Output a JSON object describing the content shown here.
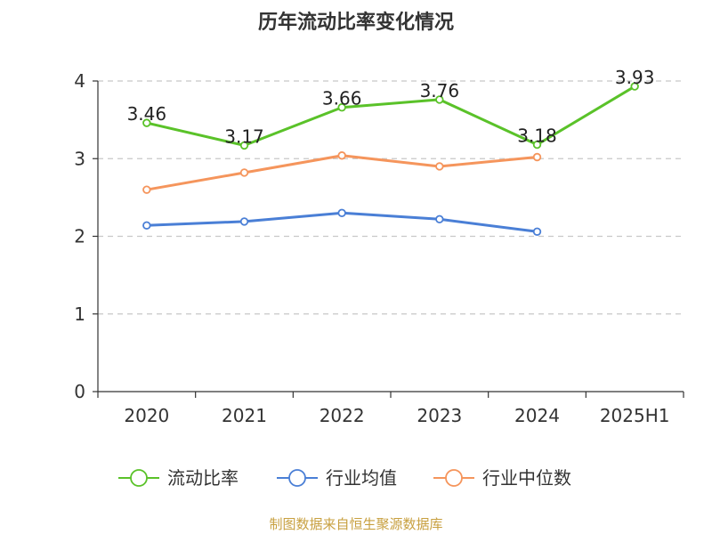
{
  "chart_data": {
    "type": "line",
    "title": "历年流动比率变化情况",
    "categories": [
      "2020",
      "2021",
      "2022",
      "2023",
      "2024",
      "2025H1"
    ],
    "ylim": [
      0,
      4
    ],
    "yticks": [
      "0",
      "1",
      "2",
      "3",
      "4"
    ],
    "grid": true,
    "legend_position": "bottom",
    "series": [
      {
        "name": "流动比率",
        "color": "#5ac229",
        "values": [
          3.46,
          3.17,
          3.66,
          3.76,
          3.18,
          3.93
        ],
        "labels": [
          "3.46",
          "3.17",
          "3.66",
          "3.76",
          "3.18",
          "3.93"
        ]
      },
      {
        "name": "行业均值",
        "color": "#4a7fd6",
        "values": [
          2.14,
          2.19,
          2.3,
          2.22,
          2.06,
          null
        ]
      },
      {
        "name": "行业中位数",
        "color": "#f5955c",
        "values": [
          2.6,
          2.82,
          3.04,
          2.9,
          3.02,
          null
        ]
      }
    ]
  },
  "source_text": "制图数据来自恒生聚源数据库"
}
